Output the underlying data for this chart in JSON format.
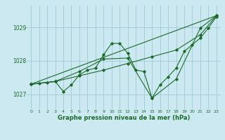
{
  "bg_color": "#cce8f0",
  "grid_color": "#a0c8d8",
  "line_color": "#1a6b2a",
  "xlabel": "Graphe pression niveau de la mer (hPa)",
  "ylabel_ticks": [
    1027,
    1028,
    1029
  ],
  "xlim": [
    -0.5,
    23.5
  ],
  "ylim": [
    1026.55,
    1029.65
  ],
  "series1": {
    "x": [
      0,
      1,
      2,
      3,
      4,
      5,
      6,
      7,
      8,
      9,
      10,
      11,
      12,
      13,
      14,
      15,
      16,
      17,
      18,
      19,
      20,
      21,
      22,
      23
    ],
    "y": [
      1027.3,
      1027.32,
      1027.35,
      1027.38,
      1027.08,
      1027.28,
      1027.58,
      1027.72,
      1027.78,
      1028.18,
      1028.52,
      1028.52,
      1028.22,
      1027.72,
      1027.68,
      1026.88,
      1027.28,
      1027.52,
      1027.78,
      1028.28,
      1028.48,
      1028.68,
      1028.98,
      1029.32
    ]
  },
  "series2": {
    "x": [
      0,
      3,
      6,
      9,
      12,
      15,
      18,
      21,
      23
    ],
    "y": [
      1027.3,
      1027.38,
      1027.68,
      1028.05,
      1028.08,
      1026.88,
      1027.45,
      1028.98,
      1029.35
    ]
  },
  "series3": {
    "x": [
      0,
      23
    ],
    "y": [
      1027.3,
      1029.35
    ]
  },
  "series4": {
    "x": [
      0,
      3,
      6,
      9,
      12,
      15,
      18,
      21,
      23
    ],
    "y": [
      1027.3,
      1027.38,
      1027.55,
      1027.72,
      1027.92,
      1028.12,
      1028.32,
      1028.78,
      1029.35
    ]
  },
  "figsize": [
    3.2,
    2.0
  ],
  "dpi": 100
}
